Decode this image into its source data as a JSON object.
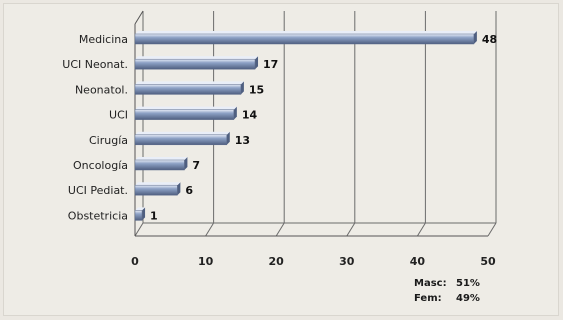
{
  "chart_data": {
    "type": "bar",
    "orientation": "horizontal",
    "title": "",
    "xlabel": "",
    "ylabel": "",
    "categories": [
      "Medicina",
      "UCI Neonat.",
      "Neonatol.",
      "UCI",
      "Cirugía",
      "Oncología",
      "UCI Pediat.",
      "Obstetricia"
    ],
    "values": [
      48,
      17,
      15,
      14,
      13,
      7,
      6,
      1
    ],
    "xlim": [
      0,
      50
    ],
    "xticks": [
      "0",
      "10",
      "20",
      "30",
      "40",
      "50"
    ],
    "grid": true,
    "legend": "none",
    "bar_color": "#8ea2c6",
    "bar_highlight": "#e9eef8",
    "bar_shadow": "#4f5f80"
  },
  "stats": [
    {
      "label": "Masc:",
      "value": "51%"
    },
    {
      "label": "Fem:",
      "value": "49%"
    }
  ]
}
